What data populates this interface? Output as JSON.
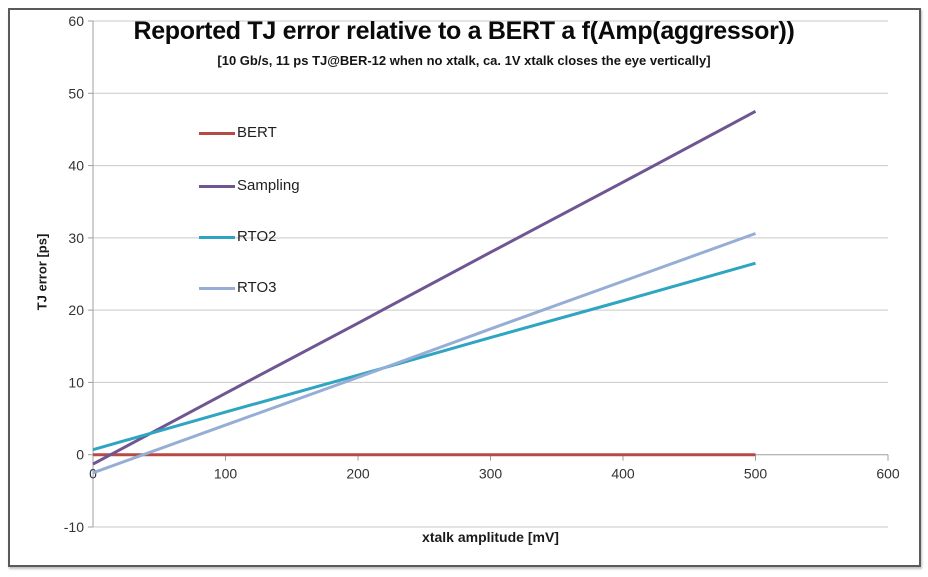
{
  "chart_data": {
    "type": "line",
    "title": "Reported TJ error relative to a BERT a f(Amp(aggressor))",
    "subtitle": "[10 Gb/s, 11 ps TJ@BER-12 when no xtalk, ca. 1V xtalk closes the eye vertically]",
    "xlabel": "xtalk amplitude [mV]",
    "ylabel": "TJ error [ps]",
    "xlim": [
      0,
      600
    ],
    "ylim": [
      -10,
      60
    ],
    "x_ticks": [
      0,
      100,
      200,
      300,
      400,
      500,
      600
    ],
    "y_ticks": [
      60,
      50,
      40,
      30,
      20,
      10,
      0,
      -10
    ],
    "grid": "horizontal-only",
    "legend_position": "inside-upper-left",
    "x": [
      0,
      100,
      200,
      300,
      400,
      500
    ],
    "series": [
      {
        "name": "BERT",
        "color": "#b64a45",
        "values": [
          0,
          0,
          0,
          0,
          0,
          0
        ]
      },
      {
        "name": "Sampling",
        "color": "#6f5692",
        "values": [
          -1.3,
          8.5,
          18.2,
          28.0,
          37.7,
          47.5
        ]
      },
      {
        "name": "RTO2",
        "color": "#2fa5c1",
        "values": [
          0.7,
          5.9,
          11.0,
          16.2,
          21.3,
          26.5
        ]
      },
      {
        "name": "RTO3",
        "color": "#96aed6",
        "values": [
          -2.5,
          4.1,
          10.7,
          17.4,
          24.0,
          30.6
        ]
      }
    ],
    "colors": {
      "grid": "#c9c9c9",
      "axis": "#9f9f9f"
    }
  }
}
